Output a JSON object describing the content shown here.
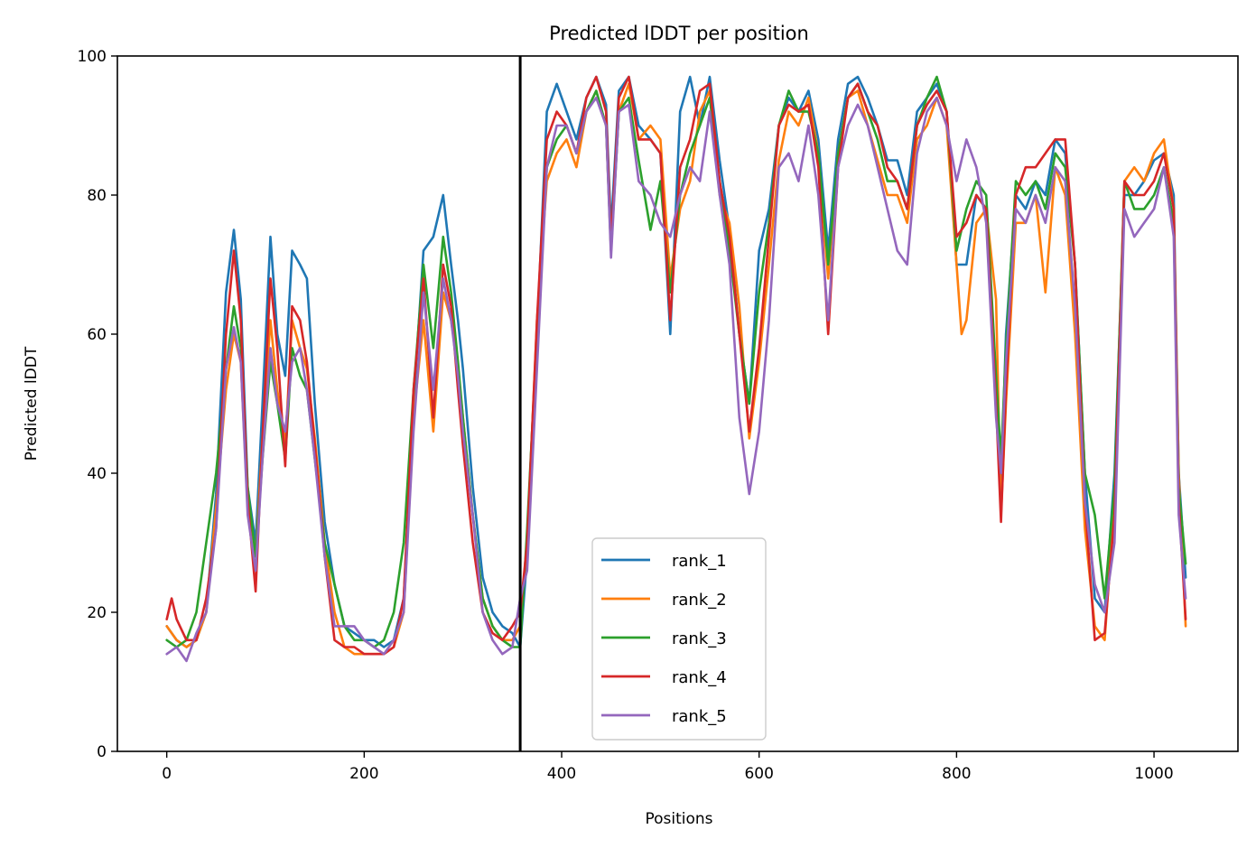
{
  "chart_data": {
    "type": "line",
    "title": "Predicted lDDT per position",
    "xlabel": "Positions",
    "ylabel": "Predicted lDDT",
    "xlim": [
      -50,
      1085
    ],
    "ylim": [
      0,
      100
    ],
    "xticks": [
      0,
      200,
      400,
      600,
      800,
      1000
    ],
    "yticks": [
      0,
      20,
      40,
      60,
      80,
      100
    ],
    "grid": false,
    "legend_position": "lower-center",
    "chain_break_x": 358,
    "series": [
      {
        "name": "rank_1",
        "color": "#1f77b4",
        "x": [
          0,
          10,
          20,
          30,
          40,
          50,
          60,
          68,
          75,
          82,
          90,
          97,
          105,
          112,
          120,
          127,
          135,
          142,
          150,
          160,
          170,
          180,
          190,
          200,
          210,
          220,
          230,
          240,
          250,
          260,
          270,
          280,
          288,
          295,
          300,
          310,
          320,
          330,
          340,
          350,
          358,
          365,
          375,
          385,
          395,
          405,
          415,
          425,
          435,
          445,
          450,
          458,
          468,
          478,
          490,
          500,
          510,
          520,
          530,
          540,
          550,
          560,
          570,
          580,
          590,
          600,
          610,
          620,
          630,
          640,
          650,
          660,
          670,
          680,
          690,
          700,
          710,
          720,
          730,
          740,
          750,
          760,
          770,
          780,
          790,
          800,
          810,
          820,
          830,
          840,
          845,
          850,
          860,
          870,
          880,
          890,
          900,
          910,
          920,
          930,
          940,
          950,
          960,
          970,
          980,
          990,
          1000,
          1010,
          1020,
          1025,
          1032
        ],
        "values": [
          18,
          16,
          15,
          16,
          20,
          37,
          66,
          75,
          65,
          38,
          30,
          50,
          74,
          60,
          54,
          72,
          70,
          68,
          50,
          33,
          24,
          18,
          17,
          16,
          16,
          15,
          16,
          22,
          50,
          72,
          74,
          80,
          70,
          62,
          55,
          38,
          25,
          20,
          18,
          17,
          15,
          28,
          60,
          92,
          96,
          92,
          88,
          94,
          97,
          93,
          75,
          95,
          97,
          90,
          88,
          86,
          60,
          92,
          97,
          90,
          97,
          85,
          75,
          60,
          50,
          72,
          78,
          90,
          94,
          92,
          95,
          88,
          72,
          88,
          96,
          97,
          94,
          90,
          85,
          85,
          80,
          92,
          94,
          96,
          92,
          70,
          70,
          80,
          78,
          50,
          38,
          60,
          80,
          78,
          82,
          80,
          88,
          86,
          70,
          40,
          22,
          20,
          40,
          80,
          80,
          82,
          85,
          86,
          80,
          40,
          25
        ]
      },
      {
        "name": "rank_2",
        "color": "#ff7f0e",
        "x": [
          0,
          10,
          20,
          30,
          40,
          50,
          60,
          68,
          75,
          82,
          90,
          97,
          105,
          112,
          120,
          127,
          135,
          142,
          150,
          160,
          170,
          180,
          190,
          200,
          210,
          220,
          230,
          240,
          250,
          260,
          270,
          280,
          288,
          295,
          300,
          310,
          320,
          330,
          340,
          350,
          358,
          365,
          375,
          385,
          395,
          405,
          415,
          425,
          435,
          445,
          450,
          458,
          468,
          478,
          490,
          500,
          510,
          520,
          530,
          540,
          550,
          560,
          570,
          580,
          590,
          600,
          610,
          620,
          630,
          640,
          650,
          660,
          670,
          680,
          690,
          700,
          710,
          720,
          730,
          740,
          750,
          760,
          770,
          780,
          790,
          800,
          805,
          810,
          820,
          830,
          840,
          845,
          850,
          860,
          870,
          880,
          890,
          900,
          910,
          920,
          930,
          940,
          950,
          960,
          970,
          980,
          990,
          1000,
          1010,
          1020,
          1025,
          1032
        ],
        "values": [
          18,
          16,
          15,
          16,
          20,
          35,
          52,
          60,
          56,
          35,
          28,
          45,
          62,
          52,
          44,
          62,
          58,
          55,
          45,
          30,
          20,
          15,
          14,
          14,
          14,
          14,
          15,
          20,
          48,
          62,
          46,
          66,
          62,
          55,
          48,
          34,
          22,
          18,
          16,
          16,
          18,
          30,
          62,
          82,
          86,
          88,
          84,
          92,
          95,
          90,
          72,
          92,
          96,
          88,
          90,
          88,
          68,
          78,
          82,
          92,
          95,
          80,
          76,
          64,
          45,
          56,
          70,
          85,
          92,
          90,
          94,
          86,
          68,
          86,
          94,
          95,
          90,
          85,
          80,
          80,
          76,
          88,
          90,
          94,
          90,
          70,
          60,
          62,
          76,
          78,
          65,
          34,
          50,
          76,
          76,
          80,
          66,
          84,
          80,
          60,
          32,
          18,
          16,
          36,
          82,
          84,
          82,
          86,
          88,
          78,
          40,
          18
        ]
      },
      {
        "name": "rank_3",
        "color": "#2ca02c",
        "x": [
          0,
          10,
          20,
          30,
          40,
          50,
          60,
          68,
          75,
          82,
          90,
          97,
          105,
          112,
          120,
          127,
          135,
          142,
          150,
          160,
          170,
          180,
          190,
          200,
          210,
          220,
          230,
          240,
          250,
          260,
          270,
          280,
          288,
          295,
          300,
          310,
          320,
          330,
          340,
          350,
          358,
          365,
          375,
          385,
          395,
          405,
          415,
          425,
          435,
          445,
          450,
          458,
          468,
          478,
          490,
          500,
          510,
          520,
          530,
          540,
          550,
          560,
          570,
          580,
          590,
          600,
          610,
          620,
          630,
          640,
          650,
          660,
          670,
          680,
          690,
          700,
          710,
          720,
          730,
          740,
          750,
          760,
          770,
          780,
          790,
          800,
          810,
          820,
          830,
          840,
          845,
          850,
          860,
          870,
          880,
          890,
          900,
          910,
          920,
          930,
          940,
          950,
          960,
          970,
          980,
          990,
          1000,
          1010,
          1020,
          1025,
          1032
        ],
        "values": [
          16,
          15,
          16,
          20,
          30,
          40,
          55,
          64,
          58,
          38,
          28,
          42,
          56,
          50,
          42,
          58,
          54,
          52,
          42,
          30,
          24,
          18,
          16,
          16,
          15,
          16,
          20,
          30,
          52,
          70,
          58,
          74,
          66,
          56,
          48,
          34,
          22,
          18,
          16,
          15,
          15,
          32,
          60,
          84,
          88,
          90,
          86,
          92,
          95,
          90,
          72,
          92,
          94,
          85,
          75,
          82,
          66,
          80,
          86,
          90,
          94,
          82,
          72,
          60,
          50,
          66,
          76,
          90,
          95,
          92,
          92,
          86,
          70,
          86,
          94,
          96,
          92,
          88,
          82,
          82,
          78,
          90,
          94,
          97,
          92,
          72,
          78,
          82,
          80,
          54,
          42,
          58,
          82,
          80,
          82,
          78,
          86,
          84,
          70,
          40,
          34,
          22,
          38,
          82,
          78,
          78,
          80,
          84,
          76,
          38,
          27
        ]
      },
      {
        "name": "rank_4",
        "color": "#d62728",
        "x": [
          0,
          5,
          10,
          20,
          30,
          40,
          50,
          60,
          68,
          75,
          82,
          90,
          97,
          105,
          112,
          120,
          127,
          135,
          142,
          150,
          160,
          170,
          180,
          190,
          200,
          210,
          220,
          230,
          240,
          250,
          260,
          270,
          280,
          288,
          295,
          300,
          310,
          320,
          330,
          340,
          350,
          358,
          365,
          375,
          385,
          395,
          405,
          415,
          425,
          435,
          445,
          450,
          458,
          468,
          478,
          490,
          500,
          510,
          520,
          530,
          540,
          550,
          560,
          570,
          580,
          590,
          600,
          610,
          620,
          630,
          640,
          650,
          660,
          670,
          680,
          690,
          700,
          710,
          720,
          730,
          740,
          750,
          760,
          770,
          780,
          790,
          800,
          810,
          820,
          830,
          840,
          845,
          850,
          860,
          870,
          880,
          890,
          900,
          910,
          920,
          930,
          940,
          950,
          960,
          970,
          980,
          990,
          1000,
          1010,
          1020,
          1025,
          1032
        ],
        "values": [
          19,
          22,
          19,
          16,
          16,
          22,
          32,
          60,
          72,
          62,
          36,
          23,
          45,
          68,
          58,
          41,
          64,
          62,
          56,
          44,
          28,
          16,
          15,
          15,
          14,
          14,
          14,
          15,
          22,
          52,
          68,
          48,
          70,
          64,
          52,
          44,
          30,
          20,
          17,
          16,
          18,
          20,
          30,
          62,
          88,
          92,
          90,
          86,
          94,
          97,
          92,
          73,
          94,
          97,
          88,
          88,
          86,
          62,
          84,
          88,
          95,
          96,
          82,
          74,
          60,
          46,
          58,
          74,
          90,
          93,
          92,
          93,
          84,
          60,
          84,
          94,
          96,
          92,
          90,
          84,
          82,
          78,
          90,
          93,
          95,
          92,
          74,
          76,
          80,
          78,
          50,
          33,
          52,
          80,
          84,
          84,
          86,
          88,
          88,
          70,
          36,
          16,
          17,
          34,
          82,
          80,
          80,
          82,
          86,
          78,
          36,
          19
        ]
      },
      {
        "name": "rank_5",
        "color": "#9467bd",
        "x": [
          0,
          10,
          20,
          30,
          40,
          50,
          60,
          68,
          75,
          82,
          90,
          97,
          105,
          112,
          120,
          127,
          135,
          142,
          150,
          160,
          170,
          180,
          190,
          200,
          210,
          220,
          230,
          240,
          250,
          260,
          270,
          280,
          288,
          295,
          300,
          310,
          320,
          330,
          340,
          350,
          358,
          365,
          375,
          385,
          395,
          405,
          415,
          425,
          435,
          445,
          450,
          458,
          468,
          478,
          490,
          500,
          510,
          520,
          530,
          540,
          550,
          560,
          570,
          580,
          590,
          600,
          610,
          620,
          630,
          640,
          650,
          660,
          670,
          680,
          690,
          700,
          710,
          720,
          730,
          740,
          750,
          760,
          770,
          780,
          790,
          800,
          810,
          820,
          830,
          840,
          845,
          850,
          860,
          870,
          880,
          890,
          900,
          910,
          920,
          930,
          940,
          950,
          960,
          970,
          980,
          990,
          1000,
          1010,
          1020,
          1025,
          1032
        ],
        "values": [
          14,
          15,
          13,
          17,
          20,
          32,
          55,
          61,
          56,
          34,
          26,
          42,
          58,
          50,
          46,
          56,
          58,
          52,
          42,
          28,
          18,
          18,
          18,
          16,
          15,
          14,
          16,
          20,
          46,
          66,
          52,
          68,
          62,
          54,
          46,
          34,
          20,
          16,
          14,
          15,
          22,
          26,
          55,
          84,
          90,
          90,
          86,
          92,
          94,
          90,
          71,
          92,
          93,
          82,
          80,
          76,
          74,
          80,
          84,
          82,
          92,
          80,
          70,
          48,
          37,
          46,
          62,
          84,
          86,
          82,
          90,
          80,
          62,
          84,
          90,
          93,
          90,
          84,
          78,
          72,
          70,
          86,
          92,
          94,
          90,
          82,
          88,
          84,
          76,
          48,
          40,
          56,
          78,
          76,
          80,
          76,
          84,
          82,
          64,
          36,
          24,
          20,
          30,
          78,
          74,
          76,
          78,
          84,
          74,
          34,
          22
        ]
      }
    ]
  }
}
